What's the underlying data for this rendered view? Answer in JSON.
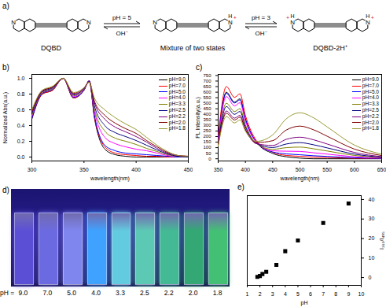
{
  "panel_labels": [
    "a)",
    "b)",
    "c)",
    "d)",
    "e)"
  ],
  "scheme": {
    "reactant": "DQBD",
    "intermediate": "Mixture of two states",
    "product": "DQBD-2H⁺",
    "step1_condition": "pH = 5",
    "step2_condition": "pH = 3",
    "reverse_reagent": "OH⁻",
    "atom": "N",
    "proton": "H",
    "charge": "+"
  },
  "photo": {
    "label": "pH =",
    "samples": [
      "9.0",
      "7.0",
      "5.0",
      "4.0",
      "3.3",
      "2.5",
      "2.2",
      "2.0",
      "1.8"
    ],
    "colors": [
      "#5b4fd6",
      "#6c6ae0",
      "#7f86ee",
      "#3fa2ff",
      "#63cbe0",
      "#5cc9b4",
      "#43b994",
      "#33a874",
      "#44c074"
    ]
  },
  "chart_data": [
    {
      "type": "line",
      "x_label": "wavelength(nm)",
      "y_label": "Normalized Abs(a.u.)",
      "x": [
        300,
        310,
        320,
        330,
        340,
        350,
        355,
        360,
        370,
        380,
        390,
        400,
        410,
        420,
        430,
        440,
        450
      ],
      "xlim": [
        300,
        450
      ],
      "xticks": [
        300,
        350,
        400,
        450
      ],
      "ylim": [
        -0.05,
        1.05
      ],
      "yticks": [
        {
          "value": 0,
          "label": "0.0"
        },
        {
          "value": 0.2,
          "label": "0.2"
        },
        {
          "value": 0.4,
          "label": "0.4"
        },
        {
          "value": 0.6,
          "label": "0.6"
        },
        {
          "value": 0.8,
          "label": "0.8"
        },
        {
          "value": 1,
          "label": "1.0"
        }
      ],
      "legend": "top-right",
      "series": [
        {
          "name": "pH=9.0",
          "color": "#000000",
          "values": [
            0.48,
            0.8,
            0.85,
            1.0,
            0.75,
            0.85,
            0.97,
            0.5,
            0.1,
            0.03,
            0.01,
            0,
            0,
            0,
            0,
            0,
            0
          ]
        },
        {
          "name": "pH=7.0",
          "color": "#ff0000",
          "values": [
            0.49,
            0.8,
            0.85,
            1.0,
            0.75,
            0.85,
            0.97,
            0.51,
            0.13,
            0.05,
            0.03,
            0.02,
            0.01,
            0.01,
            0,
            0,
            0
          ]
        },
        {
          "name": "pH=5.0",
          "color": "#0000ff",
          "values": [
            0.49,
            0.81,
            0.86,
            1.0,
            0.76,
            0.85,
            0.97,
            0.53,
            0.15,
            0.08,
            0.05,
            0.04,
            0.03,
            0.02,
            0.01,
            0,
            0
          ]
        },
        {
          "name": "pH=4.0",
          "color": "#ff00ff",
          "values": [
            0.52,
            0.82,
            0.87,
            1.0,
            0.77,
            0.86,
            0.96,
            0.58,
            0.25,
            0.17,
            0.13,
            0.1,
            0.08,
            0.05,
            0.02,
            0.01,
            0
          ]
        },
        {
          "name": "pH=3.3",
          "color": "#808000",
          "values": [
            0.53,
            0.82,
            0.87,
            1.0,
            0.78,
            0.86,
            0.96,
            0.61,
            0.33,
            0.24,
            0.2,
            0.16,
            0.11,
            0.07,
            0.03,
            0.01,
            0
          ]
        },
        {
          "name": "pH=2.5",
          "color": "#000080",
          "values": [
            0.55,
            0.83,
            0.88,
            1.0,
            0.79,
            0.87,
            0.96,
            0.65,
            0.4,
            0.31,
            0.26,
            0.21,
            0.15,
            0.09,
            0.04,
            0.01,
            0
          ]
        },
        {
          "name": "pH=2.2",
          "color": "#800080",
          "values": [
            0.57,
            0.84,
            0.89,
            1.0,
            0.8,
            0.87,
            0.96,
            0.69,
            0.48,
            0.38,
            0.32,
            0.26,
            0.19,
            0.11,
            0.05,
            0.02,
            0.01
          ]
        },
        {
          "name": "pH=2.0",
          "color": "#800000",
          "values": [
            0.58,
            0.84,
            0.89,
            1.0,
            0.81,
            0.88,
            0.95,
            0.71,
            0.53,
            0.43,
            0.36,
            0.3,
            0.21,
            0.13,
            0.06,
            0.02,
            0.01
          ]
        },
        {
          "name": "pH=1.8",
          "color": "#999933",
          "values": [
            0.6,
            0.85,
            0.9,
            1.0,
            0.82,
            0.88,
            0.95,
            0.75,
            0.6,
            0.5,
            0.42,
            0.35,
            0.25,
            0.15,
            0.07,
            0.02,
            0.01
          ]
        }
      ]
    },
    {
      "type": "line",
      "x_label": "wavelength(nm)",
      "y_label": "PL Intensity(a.u.)",
      "x": [
        350,
        365,
        380,
        390,
        400,
        420,
        450,
        475,
        500,
        525,
        550,
        600,
        650
      ],
      "xlim": [
        350,
        650
      ],
      "xticks": [
        350,
        400,
        450,
        500,
        550,
        600,
        650
      ],
      "ylim": [
        -20,
        760
      ],
      "yticks": [
        0,
        50,
        100,
        150,
        200,
        250,
        300,
        350,
        400,
        450,
        500,
        550,
        600,
        650,
        700,
        750
      ],
      "legend": "top-right",
      "series": [
        {
          "name": "pH=9.0",
          "color": "#000000",
          "values": [
            180,
            600,
            510,
            540,
            360,
            150,
            48,
            18,
            6,
            0,
            0,
            0,
            0
          ]
        },
        {
          "name": "pH=7.0",
          "color": "#ff0000",
          "values": [
            195,
            650,
            553,
            585,
            391,
            165,
            59,
            30,
            22,
            14,
            11,
            5,
            2
          ]
        },
        {
          "name": "pH=5.0",
          "color": "#0000ff",
          "values": [
            177,
            590,
            502,
            531,
            356,
            152,
            61,
            44,
            36,
            27,
            21,
            9,
            3
          ]
        },
        {
          "name": "pH=4.0",
          "color": "#ff00ff",
          "values": [
            168,
            560,
            476,
            505,
            339,
            149,
            72,
            68,
            66,
            54,
            42,
            18,
            6
          ]
        },
        {
          "name": "pH=3.3",
          "color": "#808000",
          "values": [
            150,
            500,
            425,
            452,
            305,
            140,
            85,
            100,
            105,
            90,
            70,
            30,
            10
          ]
        },
        {
          "name": "pH=2.5",
          "color": "#000080",
          "values": [
            141,
            470,
            400,
            426,
            289,
            139,
            101,
            133,
            145,
            126,
            98,
            42,
            14
          ]
        },
        {
          "name": "pH=2.2",
          "color": "#800080",
          "values": [
            129,
            430,
            366,
            391,
            268,
            136,
            120,
            175,
            194,
            171,
            133,
            57,
            19
          ]
        },
        {
          "name": "pH=2.0",
          "color": "#800000",
          "values": [
            123,
            410,
            349,
            375,
            261,
            146,
            163,
            259,
            294,
            261,
            203,
            87,
            29
          ]
        },
        {
          "name": "pH=1.8",
          "color": "#999933",
          "values": [
            114,
            380,
            323,
            350,
            249,
            157,
            215,
            360,
            414,
            369,
            287,
            123,
            41
          ]
        }
      ]
    },
    {
      "type": "scatter",
      "x_label": "pH",
      "y_label": "I₃₆₀/I₄₉₅",
      "x": [
        1.8,
        2.0,
        2.2,
        2.5,
        3.3,
        4.0,
        5.0,
        7.0,
        9.0
      ],
      "values": [
        0.3,
        0.8,
        1.8,
        3.0,
        6.5,
        13.5,
        19.0,
        28.0,
        38.0
      ],
      "color": "#000000",
      "marker": "square",
      "xlim": [
        1,
        10
      ],
      "xticks": [
        1,
        2,
        3,
        4,
        5,
        6,
        7,
        8,
        9,
        10
      ],
      "ylim": [
        -4,
        42
      ],
      "yticks": [
        0,
        10,
        20,
        30,
        40
      ]
    }
  ]
}
